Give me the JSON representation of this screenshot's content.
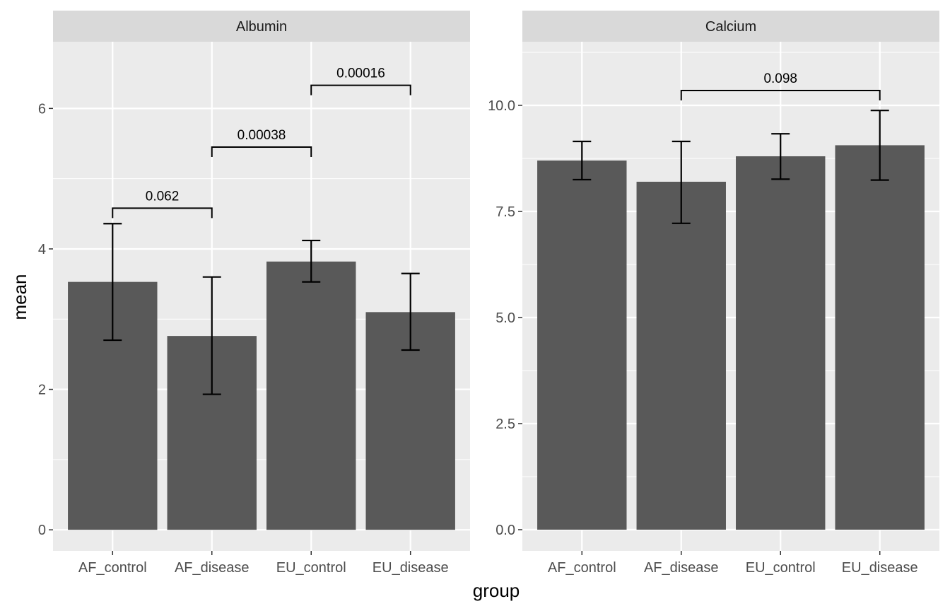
{
  "chart_data": {
    "type": "bar",
    "xlabel": "group",
    "ylabel": "mean",
    "categories": [
      "AF_control",
      "AF_disease",
      "EU_control",
      "EU_disease"
    ],
    "facets": [
      {
        "title": "Albumin",
        "ylim": [
          -0.3,
          6.95
        ],
        "yticks": [
          0,
          2,
          4,
          6
        ],
        "ytick_labels": [
          "0",
          "2",
          "4",
          "6"
        ],
        "values": [
          3.53,
          2.76,
          3.82,
          3.1
        ],
        "error_low": [
          2.7,
          1.93,
          3.53,
          2.56
        ],
        "error_high": [
          4.36,
          3.6,
          4.12,
          3.65
        ],
        "comparisons": [
          {
            "from": "AF_control",
            "to": "AF_disease",
            "y": 4.58,
            "label": "0.062"
          },
          {
            "from": "AF_disease",
            "to": "EU_control",
            "y": 5.45,
            "label": "0.00038"
          },
          {
            "from": "EU_control",
            "to": "EU_disease",
            "y": 6.33,
            "label": "0.00016"
          }
        ]
      },
      {
        "title": "Calcium",
        "ylim": [
          -0.5,
          11.5
        ],
        "yticks": [
          0,
          2.5,
          5,
          7.5,
          10
        ],
        "ytick_labels": [
          "0.0",
          "2.5",
          "5.0",
          "7.5",
          "10.0"
        ],
        "values": [
          8.7,
          8.2,
          8.8,
          9.06
        ],
        "error_low": [
          8.25,
          7.22,
          8.26,
          8.24
        ],
        "error_high": [
          9.15,
          9.15,
          9.33,
          9.88
        ],
        "comparisons": [
          {
            "from": "AF_disease",
            "to": "EU_disease",
            "y": 10.35,
            "label": "0.098"
          }
        ]
      }
    ],
    "colors": {
      "bar": "#595959",
      "panel_bg": "#ebebeb",
      "strip_bg": "#d9d9d9",
      "grid": "#ffffff",
      "errorbar": "#000000"
    }
  }
}
